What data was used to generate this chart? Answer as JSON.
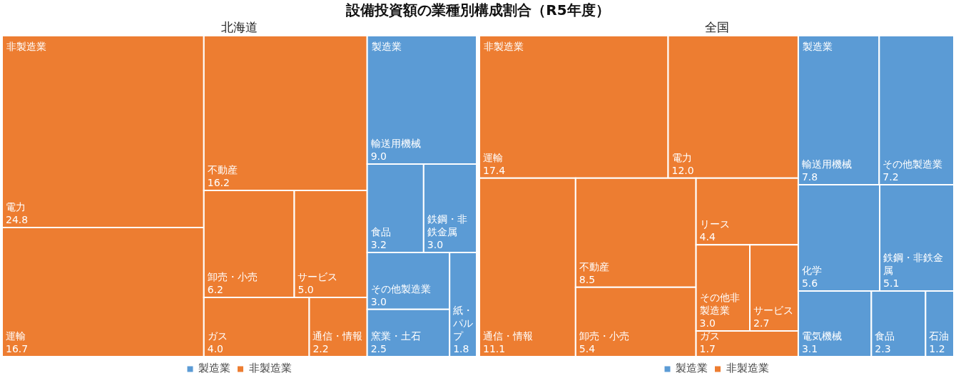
{
  "chart_data": [
    {
      "type": "other",
      "title": "設備投資額の業種別構成割合（R5年度）",
      "subtitle": "北海道",
      "legend": "bottom",
      "data_labels": true,
      "categories": [
        "輸送用機械",
        "食品",
        "鉄鋼・非鉄金属",
        "その他製造業",
        "窯業・土石",
        "紙・パルプ",
        "電力",
        "運輸",
        "不動産",
        "卸売・小売",
        "サービス",
        "ガス",
        "通信・情報"
      ],
      "series": [
        {
          "name": "製造業",
          "color": "#5b9bd5",
          "values": [
            9.0,
            3.2,
            3.0,
            3.0,
            2.5,
            1.8,
            null,
            null,
            null,
            null,
            null,
            null,
            null
          ],
          "value_labels": [
            "9.0",
            "3.2",
            "3.0",
            "3.0",
            "2.5",
            "1.8",
            null,
            null,
            null,
            null,
            null,
            null,
            null
          ]
        },
        {
          "name": "非製造業",
          "color": "#ed7d31",
          "values": [
            null,
            null,
            null,
            null,
            null,
            null,
            24.8,
            16.7,
            16.2,
            6.2,
            5.0,
            4.0,
            2.2
          ],
          "value_labels": [
            null,
            null,
            null,
            null,
            null,
            null,
            "24.8",
            "16.7",
            "16.2",
            "6.2",
            "5.0",
            "4.0",
            "2.2"
          ]
        }
      ]
    },
    {
      "type": "other",
      "subtitle": "全国",
      "legend": "bottom",
      "data_labels": true,
      "categories": [
        "輸送用機械",
        "その他製造業",
        "化学",
        "鉄鋼・非鉄金属",
        "電気機械",
        "食品",
        "石油",
        "運輸",
        "電力",
        "通信・情報",
        "不動産",
        "卸売・小売",
        "リース",
        "その他非製造業",
        "サービス",
        "ガス"
      ],
      "series": [
        {
          "name": "製造業",
          "color": "#5b9bd5",
          "values": [
            7.8,
            7.2,
            5.6,
            5.1,
            3.1,
            2.3,
            1.2,
            null,
            null,
            null,
            null,
            null,
            null,
            null,
            null,
            null
          ],
          "value_labels": [
            "7.8",
            "7.2",
            "5.6",
            "5.1",
            "3.1",
            "2.3",
            "1.2",
            null,
            null,
            null,
            null,
            null,
            null,
            null,
            null,
            null
          ]
        },
        {
          "name": "非製造業",
          "color": "#ed7d31",
          "values": [
            null,
            null,
            null,
            null,
            null,
            null,
            null,
            17.4,
            12.0,
            11.1,
            8.5,
            5.4,
            4.4,
            3.0,
            2.7,
            1.7
          ],
          "value_labels": [
            null,
            null,
            null,
            null,
            null,
            null,
            null,
            "17.4",
            "12.0",
            "11.1",
            "8.5",
            "5.4",
            "4.4",
            "3.0",
            "2.7",
            "1.7"
          ]
        }
      ]
    }
  ]
}
